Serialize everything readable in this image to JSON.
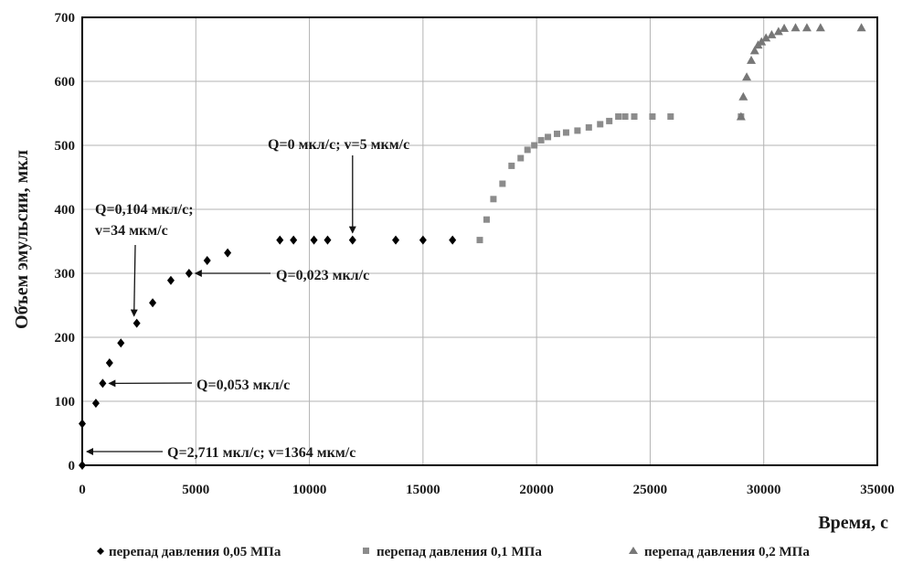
{
  "chart_data": {
    "type": "scatter",
    "xlabel": "Время, с",
    "ylabel": "Объем эмульсии, мкл",
    "xlim": [
      0,
      35000
    ],
    "ylim": [
      0,
      700
    ],
    "x_ticks": [
      0,
      5000,
      10000,
      15000,
      20000,
      25000,
      30000,
      35000
    ],
    "y_ticks": [
      0,
      100,
      200,
      300,
      400,
      500,
      600,
      700
    ],
    "x_tick_labels": [
      "0",
      "5000",
      "10000",
      "15000",
      "20000",
      "25000",
      "30000",
      "35000"
    ],
    "y_tick_labels": [
      "0",
      "100",
      "200",
      "300",
      "400",
      "500",
      "600",
      "700"
    ],
    "grid": true,
    "legend_position": "bottom",
    "series": [
      {
        "name": "перепад давления 0,05 МПа",
        "marker": "diamond",
        "color": "#000000",
        "points": [
          [
            0,
            0
          ],
          [
            0,
            65
          ],
          [
            600,
            97
          ],
          [
            900,
            128
          ],
          [
            1200,
            160
          ],
          [
            1700,
            191
          ],
          [
            2400,
            222
          ],
          [
            3100,
            254
          ],
          [
            3900,
            289
          ],
          [
            4700,
            300
          ],
          [
            5500,
            320
          ],
          [
            6400,
            332
          ],
          [
            8700,
            352
          ],
          [
            9300,
            352
          ],
          [
            10200,
            352
          ],
          [
            10800,
            352
          ],
          [
            11900,
            352
          ],
          [
            13800,
            352
          ],
          [
            15000,
            352
          ],
          [
            16300,
            352
          ]
        ]
      },
      {
        "name": "перепад давления 0,1 МПа",
        "marker": "square",
        "color": "#8c8c8c",
        "points": [
          [
            17500,
            352
          ],
          [
            17800,
            384
          ],
          [
            18100,
            416
          ],
          [
            18500,
            440
          ],
          [
            18900,
            468
          ],
          [
            19300,
            480
          ],
          [
            19600,
            493
          ],
          [
            19900,
            500
          ],
          [
            20200,
            508
          ],
          [
            20500,
            513
          ],
          [
            20900,
            518
          ],
          [
            21300,
            520
          ],
          [
            21800,
            523
          ],
          [
            22300,
            528
          ],
          [
            22800,
            533
          ],
          [
            23200,
            538
          ],
          [
            23600,
            545
          ],
          [
            23900,
            545
          ],
          [
            24300,
            545
          ],
          [
            25100,
            545
          ],
          [
            25900,
            545
          ],
          [
            29000,
            545
          ]
        ]
      },
      {
        "name": "перепад давления 0,2 МПа",
        "marker": "triangle",
        "color": "#777777",
        "points": [
          [
            29000,
            545
          ],
          [
            29100,
            576
          ],
          [
            29250,
            607
          ],
          [
            29450,
            633
          ],
          [
            29600,
            648
          ],
          [
            29750,
            657
          ],
          [
            29900,
            662
          ],
          [
            30100,
            668
          ],
          [
            30350,
            673
          ],
          [
            30650,
            678
          ],
          [
            30900,
            683
          ],
          [
            31400,
            684
          ],
          [
            31900,
            684
          ],
          [
            32500,
            684
          ],
          [
            34300,
            684
          ]
        ]
      }
    ],
    "annotations": [
      {
        "text": "Q=0 мкл/с; v=5 мкм/с",
        "target": [
          11900,
          352
        ]
      },
      {
        "text": "Q=0,104 мкл/с;",
        "text2": "v=34 мкм/с",
        "target": [
          2400,
          222
        ]
      },
      {
        "text": "Q=0,023 мкл/с",
        "target": [
          4700,
          300
        ]
      },
      {
        "text": "Q=0,053 мкл/с",
        "target": [
          900,
          128
        ]
      },
      {
        "text": "Q=2,711 мкл/с; v=1364 мкм/с",
        "target": [
          0,
          0
        ]
      }
    ]
  }
}
